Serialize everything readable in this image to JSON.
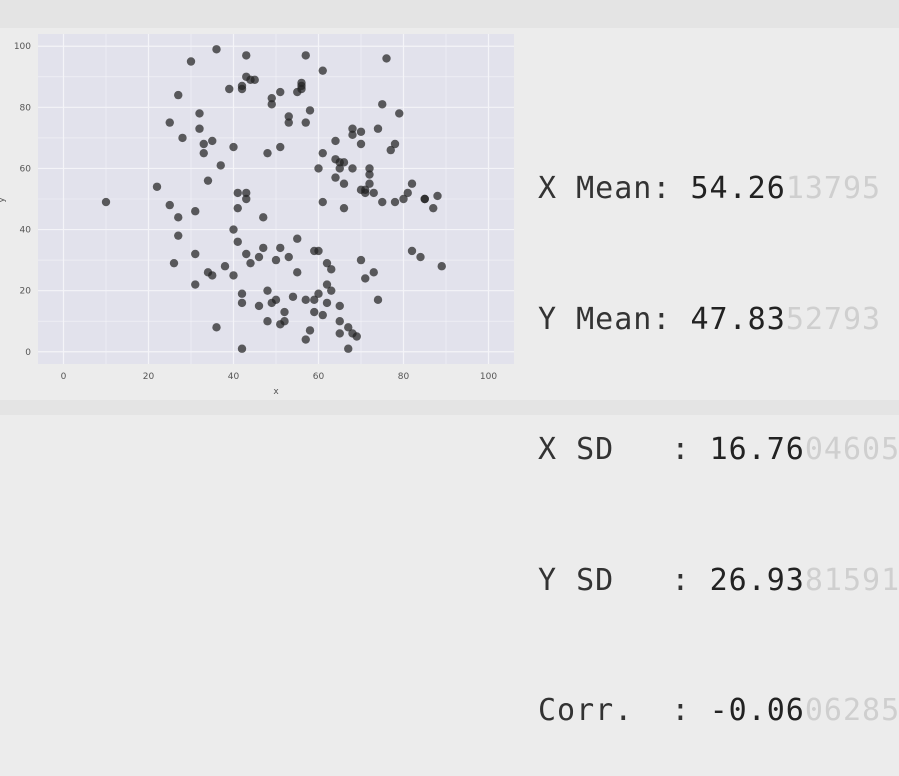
{
  "chart_data": {
    "type": "scatter",
    "xlabel": "x",
    "ylabel": "y",
    "xlim": [
      -6,
      106
    ],
    "ylim": [
      -4,
      104
    ],
    "xticks": [
      "0",
      "20",
      "40",
      "60",
      "80",
      "100"
    ],
    "yticks": [
      "0",
      "20",
      "40",
      "60",
      "80",
      "100"
    ],
    "grid": true,
    "color": "#222222",
    "points": [
      [
        10,
        49
      ],
      [
        22,
        54
      ],
      [
        25,
        48
      ],
      [
        25,
        75
      ],
      [
        26,
        29
      ],
      [
        27,
        38
      ],
      [
        27,
        44
      ],
      [
        27,
        84
      ],
      [
        28,
        70
      ],
      [
        30,
        95
      ],
      [
        31,
        22
      ],
      [
        31,
        46
      ],
      [
        31,
        32
      ],
      [
        32,
        78
      ],
      [
        32,
        73
      ],
      [
        33,
        65
      ],
      [
        33,
        68
      ],
      [
        34,
        56
      ],
      [
        34,
        26
      ],
      [
        35,
        25
      ],
      [
        35,
        69
      ],
      [
        36,
        99
      ],
      [
        36,
        8
      ],
      [
        37,
        61
      ],
      [
        38,
        28
      ],
      [
        39,
        86
      ],
      [
        40,
        25
      ],
      [
        40,
        67
      ],
      [
        40,
        40
      ],
      [
        41,
        36
      ],
      [
        41,
        52
      ],
      [
        41,
        47
      ],
      [
        42,
        86
      ],
      [
        42,
        87
      ],
      [
        42,
        19
      ],
      [
        42,
        16
      ],
      [
        42,
        1
      ],
      [
        43,
        97
      ],
      [
        43,
        50
      ],
      [
        43,
        52
      ],
      [
        43,
        90
      ],
      [
        43,
        32
      ],
      [
        44,
        29
      ],
      [
        44,
        89
      ],
      [
        45,
        89
      ],
      [
        46,
        15
      ],
      [
        46,
        31
      ],
      [
        47,
        44
      ],
      [
        47,
        34
      ],
      [
        48,
        20
      ],
      [
        48,
        65
      ],
      [
        48,
        10
      ],
      [
        49,
        81
      ],
      [
        49,
        83
      ],
      [
        49,
        16
      ],
      [
        50,
        30
      ],
      [
        50,
        17
      ],
      [
        51,
        85
      ],
      [
        51,
        67
      ],
      [
        51,
        34
      ],
      [
        51,
        9
      ],
      [
        52,
        13
      ],
      [
        52,
        10
      ],
      [
        53,
        77
      ],
      [
        53,
        75
      ],
      [
        53,
        31
      ],
      [
        54,
        18
      ],
      [
        55,
        85
      ],
      [
        55,
        37
      ],
      [
        55,
        26
      ],
      [
        56,
        87
      ],
      [
        56,
        86
      ],
      [
        56,
        88
      ],
      [
        57,
        97
      ],
      [
        57,
        75
      ],
      [
        57,
        4
      ],
      [
        57,
        17
      ],
      [
        58,
        79
      ],
      [
        58,
        7
      ],
      [
        59,
        17
      ],
      [
        59,
        33
      ],
      [
        59,
        13
      ],
      [
        60,
        33
      ],
      [
        60,
        19
      ],
      [
        60,
        60
      ],
      [
        61,
        92
      ],
      [
        61,
        65
      ],
      [
        61,
        49
      ],
      [
        61,
        12
      ],
      [
        62,
        29
      ],
      [
        62,
        16
      ],
      [
        62,
        22
      ],
      [
        63,
        27
      ],
      [
        63,
        20
      ],
      [
        64,
        69
      ],
      [
        64,
        63
      ],
      [
        64,
        57
      ],
      [
        65,
        62
      ],
      [
        65,
        60
      ],
      [
        65,
        15
      ],
      [
        65,
        10
      ],
      [
        65,
        6
      ],
      [
        66,
        62
      ],
      [
        66,
        55
      ],
      [
        66,
        47
      ],
      [
        67,
        8
      ],
      [
        67,
        1
      ],
      [
        68,
        73
      ],
      [
        68,
        71
      ],
      [
        68,
        60
      ],
      [
        68,
        6
      ],
      [
        69,
        5
      ],
      [
        70,
        72
      ],
      [
        70,
        68
      ],
      [
        70,
        53
      ],
      [
        70,
        30
      ],
      [
        71,
        53
      ],
      [
        71,
        52
      ],
      [
        71,
        24
      ],
      [
        72,
        58
      ],
      [
        72,
        55
      ],
      [
        72,
        60
      ],
      [
        73,
        52
      ],
      [
        73,
        26
      ],
      [
        74,
        73
      ],
      [
        74,
        17
      ],
      [
        75,
        81
      ],
      [
        75,
        49
      ],
      [
        76,
        96
      ],
      [
        77,
        66
      ],
      [
        78,
        68
      ],
      [
        78,
        49
      ],
      [
        79,
        78
      ],
      [
        80,
        50
      ],
      [
        81,
        52
      ],
      [
        82,
        55
      ],
      [
        82,
        33
      ],
      [
        84,
        31
      ],
      [
        85,
        50
      ],
      [
        85,
        50
      ],
      [
        87,
        47
      ],
      [
        88,
        51
      ],
      [
        89,
        28
      ]
    ]
  },
  "stats": [
    {
      "label": "X Mean: ",
      "strong": "54.26",
      "faint": "13795"
    },
    {
      "label": "Y Mean: ",
      "strong": "47.83",
      "faint": "52793"
    },
    {
      "label": "X SD   : ",
      "strong": "16.76",
      "faint": "04605"
    },
    {
      "label": "Y SD   : ",
      "strong": "26.93",
      "faint": "81591"
    },
    {
      "label": "Corr.  : ",
      "strong": "-0.06",
      "faint": "06285"
    }
  ]
}
